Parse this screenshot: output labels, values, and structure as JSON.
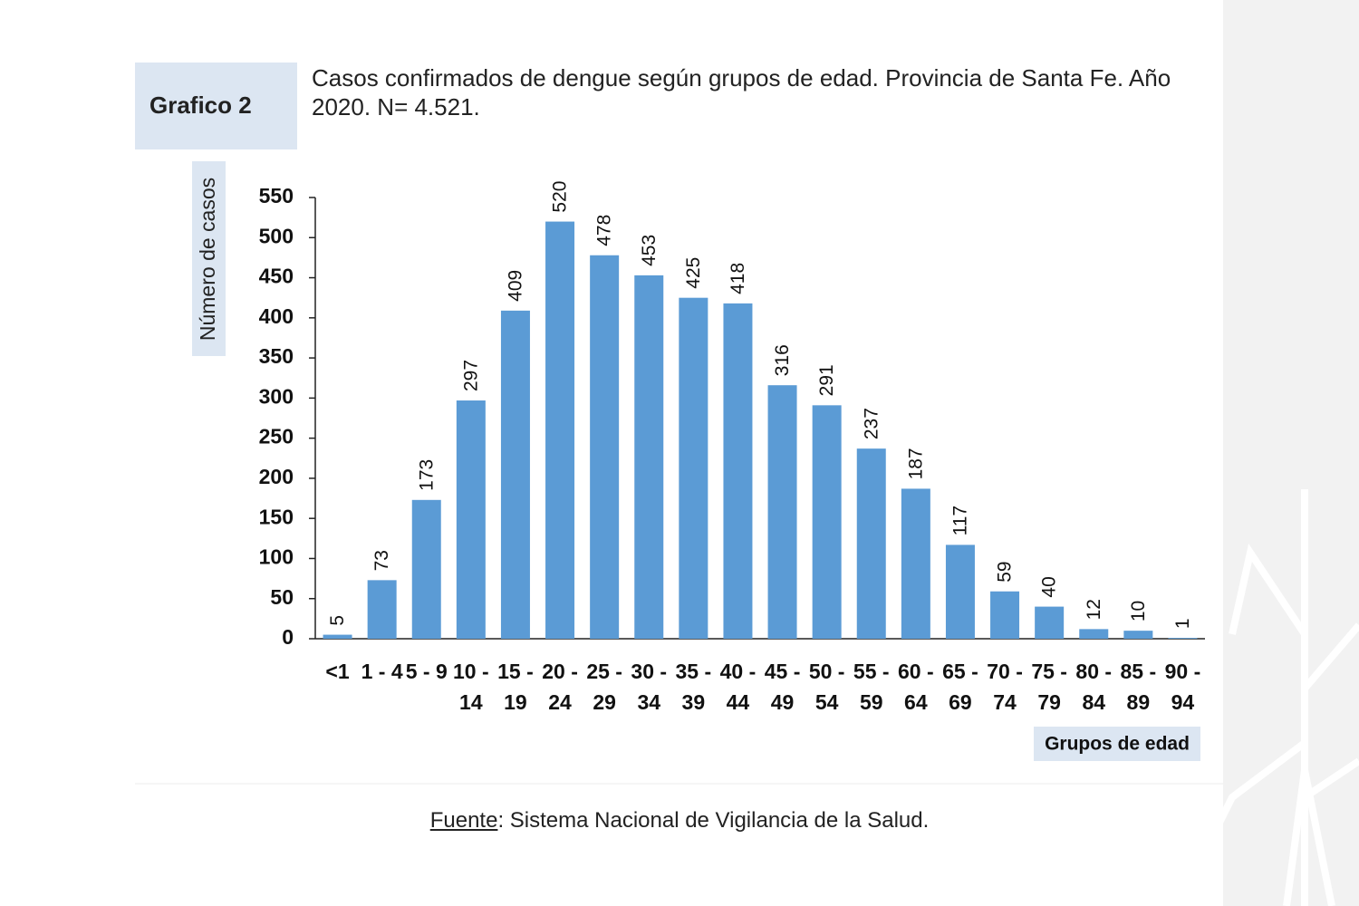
{
  "figure_label": "Grafico 2",
  "chart_data": {
    "type": "bar",
    "title": "Casos confirmados de dengue según grupos de edad. Provincia de Santa Fe. Año 2020. N= 4.521.",
    "y_label": "Número de casos",
    "x_label": "Grupos de edad",
    "categories": [
      "<1",
      "1 - 4",
      "5 - 9",
      "10 - 14",
      "15 - 19",
      "20 - 24",
      "25 - 29",
      "30 - 34",
      "35 - 39",
      "40 - 44",
      "45 - 49",
      "50 - 54",
      "55 - 59",
      "60 - 64",
      "65 - 69",
      "70 - 74",
      "75 - 79",
      "80 - 84",
      "85 - 89",
      "90 - 94"
    ],
    "values": [
      5,
      73,
      173,
      297,
      409,
      520,
      478,
      453,
      425,
      418,
      316,
      291,
      237,
      187,
      117,
      59,
      40,
      12,
      10,
      1
    ],
    "color": "#5b9bd5",
    "ylim": [
      0,
      550
    ],
    "yticks": [
      0,
      50,
      100,
      150,
      200,
      250,
      300,
      350,
      400,
      450,
      500,
      550
    ],
    "grid": false
  },
  "footer": {
    "label": "Fuente",
    "text": ": Sistema Nacional de Vigilancia de la Salud."
  }
}
